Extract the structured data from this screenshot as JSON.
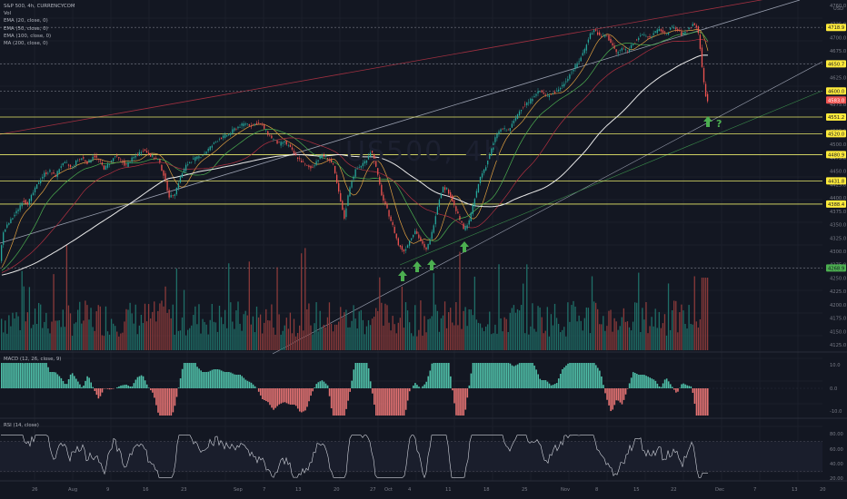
{
  "legend": {
    "symbol": "S&P 500, 4h, CURRENCYCOM",
    "vol": "Vol",
    "ema20": "EMA (20, close, 0)",
    "ema50": "EMA (50, close, 0)",
    "ema100": "EMA (100, close, 0)",
    "ma200": "MA (200, close, 0)"
  },
  "watermark": "US500, 4h",
  "macd_label": "MACD (12, 26, close, 9)",
  "rsi_label": "RSI (14, close)",
  "annotations": {
    "question": "?"
  },
  "colors": {
    "background": "#131722",
    "up": "#26a69a",
    "down": "#ef5350",
    "level_line": "#e8e86a",
    "price_tag": "#ffeb3b",
    "ema20": "#e0a040",
    "ema50": "#4caf50",
    "ema100": "#b03040",
    "ma200": "#e8e8e8",
    "arrow": "#4caf50"
  },
  "chart_data": {
    "type": "candlestick",
    "title": "S&P 500, 4h, CURRENCYCOM",
    "currency": "USD",
    "price_axis": {
      "ticks": [
        "4760.0",
        "4725.0",
        "4700.0",
        "4675.0",
        "4650.0",
        "4625.0",
        "4600.0",
        "4575.0",
        "4550.0",
        "4525.0",
        "4500.0",
        "4475.0",
        "4450.0",
        "4425.0",
        "4400.0",
        "4375.0",
        "4350.0",
        "4325.0",
        "4300.0",
        "4275.0",
        "4250.0",
        "4225.0",
        "4200.0",
        "4175.0",
        "4150.0",
        "4125.0"
      ],
      "range": [
        4115,
        4760
      ]
    },
    "time_axis": {
      "ticks": [
        "26",
        "Aug",
        "9",
        "16",
        "23",
        "Sep",
        "7",
        "13",
        "20",
        "27",
        "Oct",
        "4",
        "11",
        "18",
        "25",
        "Nov",
        "8",
        "15",
        "22",
        "Dec",
        "7",
        "13",
        "20"
      ]
    },
    "levels": [
      {
        "price": 4718.9,
        "label": "4718.9",
        "style": "dotted"
      },
      {
        "price": 4650.7,
        "label": "4650.7",
        "style": "dotted"
      },
      {
        "price": 4600.0,
        "label": "4600.0",
        "style": "dotted"
      },
      {
        "price": 4551.2,
        "label": "4551.2",
        "style": "solid"
      },
      {
        "price": 4520.0,
        "label": "4520.0",
        "style": "solid"
      },
      {
        "price": 4480.9,
        "label": "4480.9",
        "style": "solid"
      },
      {
        "price": 4431.8,
        "label": "4431.8",
        "style": "solid"
      },
      {
        "price": 4388.4,
        "label": "4388.4",
        "style": "solid"
      },
      {
        "price": 4268.9,
        "label": "4268.9",
        "style": "dotted"
      }
    ],
    "last_price": {
      "price": 4583.0,
      "label": "4583.0"
    },
    "macd": {
      "ticks": [
        "10.0",
        "0.0",
        "-10.0"
      ]
    },
    "rsi": {
      "ticks": [
        "80.00",
        "60.00",
        "40.00",
        "20.00"
      ]
    },
    "price_path": [
      [
        0,
        4265
      ],
      [
        4,
        4330
      ],
      [
        8,
        4345
      ],
      [
        14,
        4360
      ],
      [
        20,
        4375
      ],
      [
        26,
        4395
      ],
      [
        32,
        4390
      ],
      [
        38,
        4410
      ],
      [
        44,
        4430
      ],
      [
        50,
        4445
      ],
      [
        56,
        4450
      ],
      [
        62,
        4440
      ],
      [
        68,
        4460
      ],
      [
        74,
        4465
      ],
      [
        80,
        4455
      ],
      [
        86,
        4470
      ],
      [
        92,
        4475
      ],
      [
        98,
        4465
      ],
      [
        104,
        4480
      ],
      [
        110,
        4470
      ],
      [
        116,
        4455
      ],
      [
        122,
        4465
      ],
      [
        128,
        4478
      ],
      [
        134,
        4470
      ],
      [
        140,
        4460
      ],
      [
        146,
        4472
      ],
      [
        152,
        4480
      ],
      [
        158,
        4490
      ],
      [
        164,
        4485
      ],
      [
        170,
        4475
      ],
      [
        176,
        4470
      ],
      [
        182,
        4440
      ],
      [
        188,
        4400
      ],
      [
        194,
        4410
      ],
      [
        200,
        4440
      ],
      [
        206,
        4460
      ],
      [
        212,
        4470
      ],
      [
        218,
        4475
      ],
      [
        224,
        4480
      ],
      [
        230,
        4490
      ],
      [
        236,
        4500
      ],
      [
        242,
        4510
      ],
      [
        248,
        4515
      ],
      [
        254,
        4520
      ],
      [
        260,
        4530
      ],
      [
        266,
        4535
      ],
      [
        272,
        4540
      ],
      [
        278,
        4535
      ],
      [
        284,
        4540
      ],
      [
        290,
        4535
      ],
      [
        296,
        4520
      ],
      [
        302,
        4510
      ],
      [
        308,
        4500
      ],
      [
        314,
        4505
      ],
      [
        320,
        4495
      ],
      [
        326,
        4480
      ],
      [
        332,
        4470
      ],
      [
        338,
        4460
      ],
      [
        344,
        4455
      ],
      [
        350,
        4470
      ],
      [
        356,
        4480
      ],
      [
        362,
        4475
      ],
      [
        368,
        4460
      ],
      [
        374,
        4410
      ],
      [
        380,
        4360
      ],
      [
        386,
        4420
      ],
      [
        392,
        4450
      ],
      [
        398,
        4460
      ],
      [
        404,
        4470
      ],
      [
        410,
        4490
      ],
      [
        416,
        4450
      ],
      [
        422,
        4400
      ],
      [
        428,
        4375
      ],
      [
        434,
        4345
      ],
      [
        440,
        4310
      ],
      [
        446,
        4300
      ],
      [
        452,
        4320
      ],
      [
        458,
        4340
      ],
      [
        464,
        4320
      ],
      [
        470,
        4300
      ],
      [
        476,
        4330
      ],
      [
        482,
        4380
      ],
      [
        488,
        4420
      ],
      [
        494,
        4415
      ],
      [
        500,
        4390
      ],
      [
        506,
        4365
      ],
      [
        512,
        4340
      ],
      [
        518,
        4360
      ],
      [
        524,
        4400
      ],
      [
        530,
        4440
      ],
      [
        536,
        4460
      ],
      [
        542,
        4490
      ],
      [
        548,
        4520
      ],
      [
        554,
        4530
      ],
      [
        560,
        4525
      ],
      [
        566,
        4540
      ],
      [
        572,
        4560
      ],
      [
        578,
        4575
      ],
      [
        584,
        4580
      ],
      [
        590,
        4595
      ],
      [
        596,
        4600
      ],
      [
        602,
        4590
      ],
      [
        608,
        4595
      ],
      [
        614,
        4600
      ],
      [
        620,
        4610
      ],
      [
        626,
        4625
      ],
      [
        632,
        4640
      ],
      [
        638,
        4655
      ],
      [
        644,
        4675
      ],
      [
        650,
        4705
      ],
      [
        656,
        4715
      ],
      [
        662,
        4700
      ],
      [
        668,
        4705
      ],
      [
        674,
        4690
      ],
      [
        680,
        4670
      ],
      [
        686,
        4680
      ],
      [
        692,
        4675
      ],
      [
        698,
        4690
      ],
      [
        704,
        4700
      ],
      [
        710,
        4705
      ],
      [
        716,
        4700
      ],
      [
        722,
        4710
      ],
      [
        728,
        4715
      ],
      [
        734,
        4705
      ],
      [
        740,
        4720
      ],
      [
        746,
        4715
      ],
      [
        752,
        4705
      ],
      [
        758,
        4715
      ],
      [
        764,
        4725
      ],
      [
        768,
        4720
      ],
      [
        771,
        4695
      ],
      [
        774,
        4640
      ],
      [
        777,
        4600
      ],
      [
        779,
        4583
      ]
    ]
  }
}
